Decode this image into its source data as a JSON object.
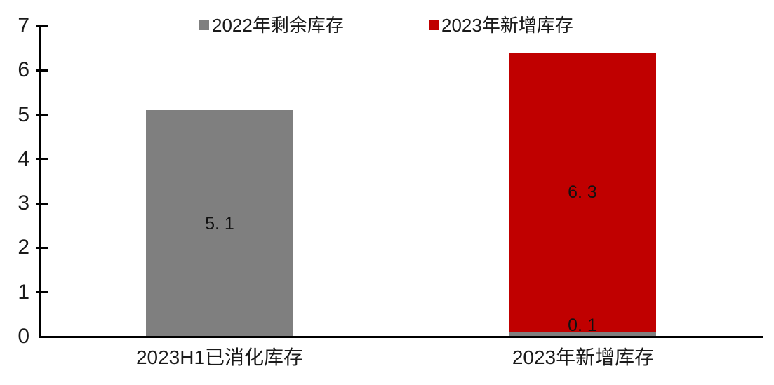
{
  "chart_data": {
    "type": "bar",
    "subtype": "stacked-column",
    "title": "",
    "categories": [
      "2023H1已消化库存",
      "2023年新增库存"
    ],
    "series": [
      {
        "name": "2022年剩余库存",
        "color": "#7f7f7f",
        "values": [
          5.1,
          0.1
        ],
        "data_labels": [
          "5. 1",
          "0. 1"
        ]
      },
      {
        "name": "2023年新增库存",
        "color": "#c00000",
        "values": [
          0,
          6.3
        ],
        "data_labels": [
          "",
          "6. 3"
        ]
      }
    ],
    "ylim": [
      0,
      7
    ],
    "yticks": [
      0,
      1,
      2,
      3,
      4,
      5,
      6,
      7
    ],
    "grid": false,
    "legend_position": "top",
    "axis_color": "#000000",
    "text_color": "#1a1a1a",
    "background_color": "#ffffff"
  }
}
